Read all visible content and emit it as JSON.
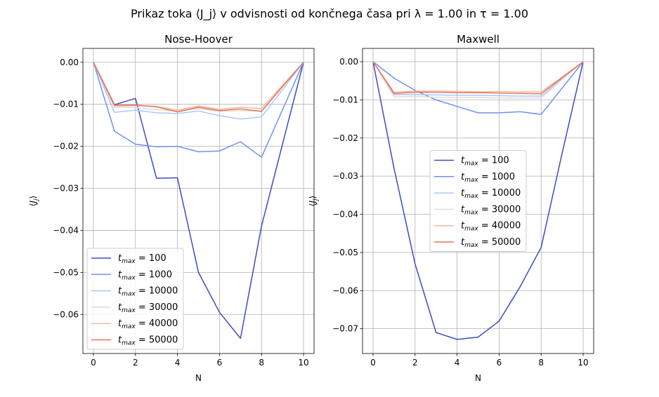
{
  "suptitle": "Prikaz toka ⟨J_j⟩ v odvisnosti od končnega časa pri λ = 1.00 in τ = 1.00",
  "chart_data": [
    {
      "type": "line",
      "title": "Nose-Hoover",
      "xlabel": "N",
      "ylabel": "⟨J_j⟩",
      "xlim": [
        -0.5,
        10.5
      ],
      "ylim": [
        -0.0693,
        0.0033
      ],
      "xticks": [
        0,
        2,
        4,
        6,
        8,
        10
      ],
      "yticks": [
        0.0,
        -0.01,
        -0.02,
        -0.03,
        -0.04,
        -0.05,
        -0.06
      ],
      "grid": true,
      "legend": "lower-left",
      "x": [
        0,
        1,
        2,
        3,
        4,
        5,
        6,
        7,
        8,
        9,
        10
      ],
      "series": [
        {
          "name": "t_max = 100",
          "color": "#3b4cc0",
          "values": [
            0.0,
            -0.0101,
            -0.0086,
            -0.0276,
            -0.0275,
            -0.05,
            -0.0595,
            -0.0657,
            -0.039,
            -0.0195,
            0.0
          ]
        },
        {
          "name": "t_max = 1000",
          "color": "#6f92f3",
          "values": [
            0.0,
            -0.0164,
            -0.0195,
            -0.0201,
            -0.02,
            -0.0213,
            -0.0211,
            -0.0189,
            -0.0226,
            -0.0113,
            0.0
          ]
        },
        {
          "name": "t_max = 10000",
          "color": "#aac7fd",
          "values": [
            0.0,
            -0.0119,
            -0.0114,
            -0.012,
            -0.0122,
            -0.0116,
            -0.0127,
            -0.0135,
            -0.013,
            -0.0065,
            0.0
          ]
        },
        {
          "name": "t_max = 30000",
          "color": "#dddcdc",
          "values": [
            0.0,
            -0.0107,
            -0.0108,
            -0.0113,
            -0.0115,
            -0.011,
            -0.0117,
            -0.0115,
            -0.0116,
            -0.0058,
            0.0
          ]
        },
        {
          "name": "t_max = 40000",
          "color": "#f7b89c",
          "values": [
            0.0,
            -0.0104,
            -0.0103,
            -0.0105,
            -0.0114,
            -0.0104,
            -0.0112,
            -0.0107,
            -0.011,
            -0.0055,
            0.0
          ]
        },
        {
          "name": "t_max = 50000",
          "color": "#e7745b",
          "values": [
            0.0,
            -0.0102,
            -0.0102,
            -0.0106,
            -0.0118,
            -0.0107,
            -0.0115,
            -0.0111,
            -0.0117,
            -0.0058,
            0.0
          ]
        }
      ]
    },
    {
      "type": "line",
      "title": "Maxwell",
      "xlabel": "N",
      "ylabel": "⟨J_j⟩",
      "xlim": [
        -0.5,
        10.5
      ],
      "ylim": [
        -0.0765,
        0.0035
      ],
      "xticks": [
        0,
        2,
        4,
        6,
        8,
        10
      ],
      "yticks": [
        0.0,
        -0.01,
        -0.02,
        -0.03,
        -0.04,
        -0.05,
        -0.06,
        -0.07
      ],
      "grid": true,
      "legend": "center",
      "x": [
        0,
        1,
        2,
        3,
        4,
        5,
        6,
        7,
        8,
        9,
        10
      ],
      "series": [
        {
          "name": "t_max = 100",
          "color": "#3b4cc0",
          "values": [
            0.0,
            -0.028,
            -0.053,
            -0.071,
            -0.0728,
            -0.0722,
            -0.068,
            -0.059,
            -0.0487,
            -0.024,
            0.0
          ]
        },
        {
          "name": "t_max = 1000",
          "color": "#6f92f3",
          "values": [
            0.0,
            -0.0043,
            -0.0075,
            -0.01,
            -0.0117,
            -0.0134,
            -0.0134,
            -0.0131,
            -0.0138,
            -0.0069,
            0.0
          ]
        },
        {
          "name": "t_max = 10000",
          "color": "#aac7fd",
          "values": [
            0.0,
            -0.0086,
            -0.0086,
            -0.0087,
            -0.0088,
            -0.0088,
            -0.0089,
            -0.009,
            -0.009,
            -0.0045,
            0.0
          ]
        },
        {
          "name": "t_max = 30000",
          "color": "#dddcdc",
          "values": [
            0.0,
            -0.0092,
            -0.0091,
            -0.0093,
            -0.0094,
            -0.0094,
            -0.0095,
            -0.0095,
            -0.0095,
            -0.0047,
            0.0
          ]
        },
        {
          "name": "t_max = 40000",
          "color": "#f7b89c",
          "values": [
            0.0,
            -0.008,
            -0.0077,
            -0.0077,
            -0.0078,
            -0.0079,
            -0.0078,
            -0.0079,
            -0.0079,
            -0.004,
            0.0
          ]
        },
        {
          "name": "t_max = 50000",
          "color": "#e7745b",
          "values": [
            0.0,
            -0.0083,
            -0.008,
            -0.008,
            -0.0081,
            -0.0081,
            -0.0082,
            -0.0083,
            -0.0084,
            -0.0042,
            0.0
          ]
        }
      ]
    }
  ]
}
